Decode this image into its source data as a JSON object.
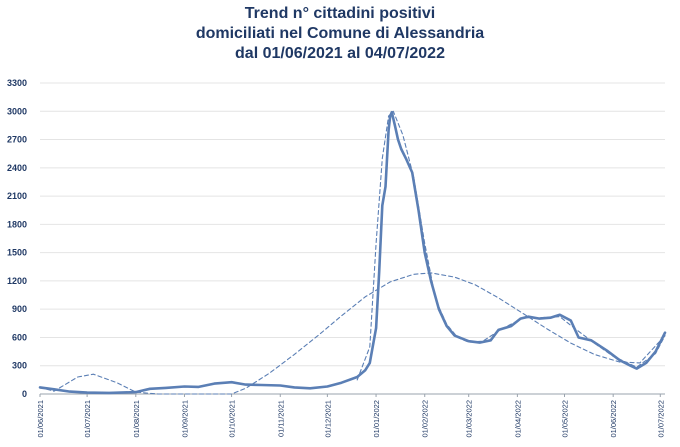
{
  "chart_data": {
    "type": "line",
    "title_lines": [
      "Trend n° cittadini positivi",
      "domiciliati nel Comune di Alessandria",
      "dal 01/06/2021 al 04/07/2022"
    ],
    "xlabel": "",
    "ylabel": "",
    "ylim": [
      0,
      3300
    ],
    "yticks": [
      0,
      300,
      600,
      900,
      1200,
      1500,
      1800,
      2100,
      2400,
      2700,
      3000,
      3300
    ],
    "ytick_labels": [
      "0",
      "300",
      "600",
      "900",
      "1200",
      "1500",
      "1800",
      "2100",
      "2400",
      "2700",
      "3000",
      "3300"
    ],
    "xlim": [
      "2021-06-01",
      "2022-07-04"
    ],
    "xticks": [
      "2021-06-01",
      "2021-07-01",
      "2021-08-01",
      "2021-09-01",
      "2021-10-01",
      "2021-11-01",
      "2021-12-01",
      "2022-01-01",
      "2022-02-01",
      "2022-03-01",
      "2022-04-01",
      "2022-05-01",
      "2022-06-01",
      "2022-07-01"
    ],
    "xtick_labels": [
      "01/06/2021",
      "01/07/2021",
      "01/08/2021",
      "01/09/2021",
      "01/10/2021",
      "01/11/2021",
      "01/12/2021",
      "01/01/2022",
      "01/02/2022",
      "01/03/2022",
      "01/04/2022",
      "01/05/2022",
      "01/06/2022",
      "01/07/2022"
    ],
    "grid": "horizontal",
    "legend": "none",
    "series": [
      {
        "style": "solid",
        "color": "#5b7fb5",
        "points": [
          [
            "2021-06-01",
            70
          ],
          [
            "2021-06-10",
            50
          ],
          [
            "2021-06-20",
            25
          ],
          [
            "2021-07-01",
            15
          ],
          [
            "2021-07-15",
            12
          ],
          [
            "2021-08-01",
            20
          ],
          [
            "2021-08-10",
            55
          ],
          [
            "2021-08-20",
            65
          ],
          [
            "2021-09-01",
            80
          ],
          [
            "2021-09-10",
            75
          ],
          [
            "2021-09-20",
            110
          ],
          [
            "2021-10-01",
            125
          ],
          [
            "2021-10-10",
            100
          ],
          [
            "2021-10-20",
            95
          ],
          [
            "2021-11-01",
            90
          ],
          [
            "2021-11-10",
            70
          ],
          [
            "2021-11-20",
            60
          ],
          [
            "2021-12-01",
            80
          ],
          [
            "2021-12-10",
            120
          ],
          [
            "2021-12-20",
            180
          ],
          [
            "2021-12-25",
            250
          ],
          [
            "2021-12-28",
            330
          ],
          [
            "2022-01-01",
            700
          ],
          [
            "2022-01-03",
            1300
          ],
          [
            "2022-01-05",
            2000
          ],
          [
            "2022-01-07",
            2200
          ],
          [
            "2022-01-09",
            2800
          ],
          [
            "2022-01-10",
            2950
          ],
          [
            "2022-01-11",
            2990
          ],
          [
            "2022-01-13",
            2850
          ],
          [
            "2022-01-15",
            2700
          ],
          [
            "2022-01-17",
            2600
          ],
          [
            "2022-01-20",
            2500
          ],
          [
            "2022-01-24",
            2350
          ],
          [
            "2022-01-28",
            1950
          ],
          [
            "2022-02-01",
            1500
          ],
          [
            "2022-02-05",
            1200
          ],
          [
            "2022-02-10",
            900
          ],
          [
            "2022-02-15",
            720
          ],
          [
            "2022-02-20",
            620
          ],
          [
            "2022-03-01",
            560
          ],
          [
            "2022-03-08",
            545
          ],
          [
            "2022-03-15",
            570
          ],
          [
            "2022-03-20",
            680
          ],
          [
            "2022-03-28",
            720
          ],
          [
            "2022-04-03",
            800
          ],
          [
            "2022-04-08",
            820
          ],
          [
            "2022-04-15",
            800
          ],
          [
            "2022-04-22",
            810
          ],
          [
            "2022-04-28",
            840
          ],
          [
            "2022-05-05",
            780
          ],
          [
            "2022-05-10",
            600
          ],
          [
            "2022-05-18",
            570
          ],
          [
            "2022-05-28",
            460
          ],
          [
            "2022-06-05",
            360
          ],
          [
            "2022-06-12",
            300
          ],
          [
            "2022-06-16",
            270
          ],
          [
            "2022-06-22",
            330
          ],
          [
            "2022-06-28",
            450
          ],
          [
            "2022-07-04",
            650
          ]
        ]
      },
      {
        "style": "dashed",
        "color": "#5b7fb5",
        "points": [
          [
            "2021-06-01",
            70
          ],
          [
            "2021-06-10",
            30
          ],
          [
            "2021-06-25",
            180
          ],
          [
            "2021-07-05",
            210
          ],
          [
            "2021-07-20",
            120
          ],
          [
            "2021-08-01",
            20
          ],
          [
            "2021-08-15",
            0
          ],
          [
            "2021-09-01",
            0
          ],
          [
            "2021-10-01",
            0
          ],
          [
            "2021-10-10",
            60
          ],
          [
            "2021-10-25",
            220
          ],
          [
            "2021-11-10",
            420
          ],
          [
            "2021-11-25",
            620
          ],
          [
            "2021-12-10",
            830
          ],
          [
            "2021-12-25",
            1030
          ],
          [
            "2022-01-10",
            1190
          ],
          [
            "2022-01-25",
            1270
          ],
          [
            "2022-02-05",
            1285
          ],
          [
            "2022-02-20",
            1240
          ],
          [
            "2022-03-05",
            1160
          ],
          [
            "2022-03-20",
            1020
          ],
          [
            "2022-04-05",
            850
          ],
          [
            "2022-04-20",
            690
          ],
          [
            "2022-05-05",
            540
          ],
          [
            "2022-05-20",
            420
          ],
          [
            "2022-06-05",
            340
          ],
          [
            "2022-06-18",
            330
          ],
          [
            "2022-07-04",
            620
          ]
        ]
      },
      {
        "style": "dashed",
        "color": "#5b7fb5",
        "points": [
          [
            "2021-12-20",
            150
          ],
          [
            "2021-12-28",
            500
          ],
          [
            "2022-01-01",
            1600
          ],
          [
            "2022-01-05",
            2500
          ],
          [
            "2022-01-09",
            2950
          ],
          [
            "2022-01-12",
            3000
          ],
          [
            "2022-01-18",
            2750
          ],
          [
            "2022-01-25",
            2300
          ],
          [
            "2022-02-01",
            1600
          ],
          [
            "2022-02-08",
            1000
          ],
          [
            "2022-02-15",
            740
          ],
          [
            "2022-02-22",
            600
          ],
          [
            "2022-03-01",
            550
          ],
          [
            "2022-03-10",
            560
          ],
          [
            "2022-03-22",
            690
          ],
          [
            "2022-04-05",
            810
          ],
          [
            "2022-04-15",
            810
          ],
          [
            "2022-04-28",
            820
          ],
          [
            "2022-05-08",
            690
          ],
          [
            "2022-05-20",
            540
          ],
          [
            "2022-06-01",
            400
          ],
          [
            "2022-06-16",
            285
          ],
          [
            "2022-06-28",
            430
          ],
          [
            "2022-07-04",
            620
          ]
        ]
      }
    ]
  }
}
